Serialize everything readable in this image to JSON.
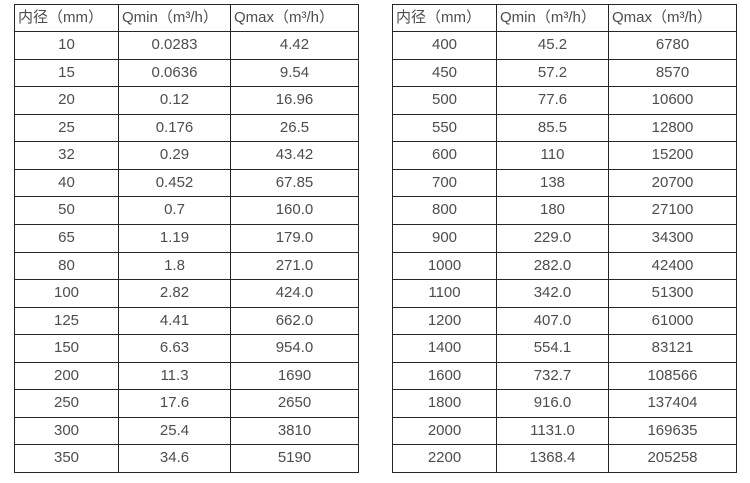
{
  "page": {
    "background_color": "#ffffff",
    "text_color": "#4d4d4d",
    "border_color": "#262626",
    "description": "Two side-by-side specification tables of pipe inner diameter vs minimum and maximum flow rate"
  },
  "chart_data": [
    {
      "type": "table",
      "title": "",
      "columns": [
        "内径（mm）",
        "Qmin（m³/h）",
        "Qmax（m³/h）"
      ],
      "rows": [
        [
          "10",
          "0.0283",
          "4.42"
        ],
        [
          "15",
          "0.0636",
          "9.54"
        ],
        [
          "20",
          "0.12",
          "16.96"
        ],
        [
          "25",
          "0.176",
          "26.5"
        ],
        [
          "32",
          "0.29",
          "43.42"
        ],
        [
          "40",
          "0.452",
          "67.85"
        ],
        [
          "50",
          "0.7",
          "160.0"
        ],
        [
          "65",
          "1.19",
          "179.0"
        ],
        [
          "80",
          "1.8",
          "271.0"
        ],
        [
          "100",
          "2.82",
          "424.0"
        ],
        [
          "125",
          "4.41",
          "662.0"
        ],
        [
          "150",
          "6.63",
          "954.0"
        ],
        [
          "200",
          "11.3",
          "1690"
        ],
        [
          "250",
          "17.6",
          "2650"
        ],
        [
          "300",
          "25.4",
          "3810"
        ],
        [
          "350",
          "34.6",
          "5190"
        ]
      ]
    },
    {
      "type": "table",
      "title": "",
      "columns": [
        "内径（mm）",
        "Qmin（m³/h）",
        "Qmax（m³/h）"
      ],
      "rows": [
        [
          "400",
          "45.2",
          "6780"
        ],
        [
          "450",
          "57.2",
          "8570"
        ],
        [
          "500",
          "77.6",
          "10600"
        ],
        [
          "550",
          "85.5",
          "12800"
        ],
        [
          "600",
          "110",
          "15200"
        ],
        [
          "700",
          "138",
          "20700"
        ],
        [
          "800",
          "180",
          "27100"
        ],
        [
          "900",
          "229.0",
          "34300"
        ],
        [
          "1000",
          "282.0",
          "42400"
        ],
        [
          "1100",
          "342.0",
          "51300"
        ],
        [
          "1200",
          "407.0",
          "61000"
        ],
        [
          "1400",
          "554.1",
          "83121"
        ],
        [
          "1600",
          "732.7",
          "108566"
        ],
        [
          "1800",
          "916.0",
          "137404"
        ],
        [
          "2000",
          "1131.0",
          "169635"
        ],
        [
          "2200",
          "1368.4",
          "205258"
        ]
      ]
    }
  ]
}
